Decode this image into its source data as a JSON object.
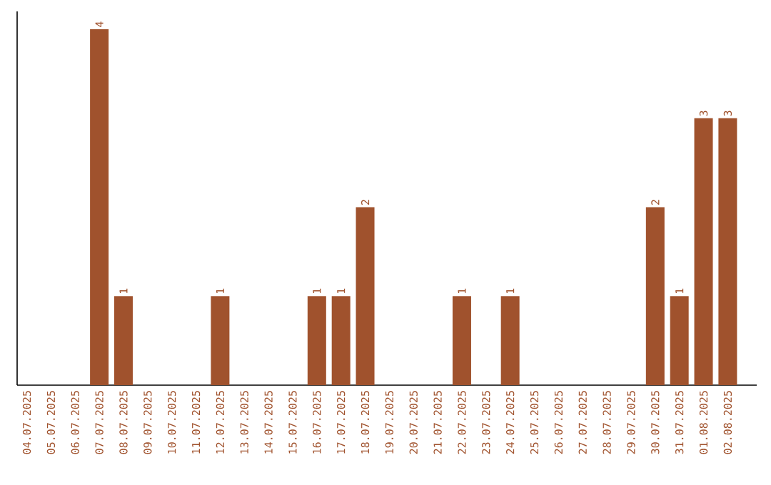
{
  "chart_data": {
    "type": "bar",
    "categories": [
      "04.07.2025",
      "05.07.2025",
      "06.07.2025",
      "07.07.2025",
      "08.07.2025",
      "09.07.2025",
      "10.07.2025",
      "11.07.2025",
      "12.07.2025",
      "13.07.2025",
      "14.07.2025",
      "15.07.2025",
      "16.07.2025",
      "17.07.2025",
      "18.07.2025",
      "19.07.2025",
      "20.07.2025",
      "21.07.2025",
      "22.07.2025",
      "23.07.2025",
      "24.07.2025",
      "25.07.2025",
      "26.07.2025",
      "27.07.2025",
      "28.07.2025",
      "29.07.2025",
      "30.07.2025",
      "31.07.2025",
      "01.08.2025",
      "02.08.2025"
    ],
    "values": [
      0,
      0,
      0,
      4,
      1,
      0,
      0,
      0,
      1,
      0,
      0,
      0,
      1,
      1,
      2,
      0,
      0,
      0,
      1,
      0,
      1,
      0,
      0,
      0,
      0,
      0,
      2,
      1,
      3,
      3
    ],
    "value_labels": [
      null,
      null,
      null,
      "4",
      "1",
      null,
      null,
      null,
      "1",
      null,
      null,
      null,
      "1",
      "1",
      "2",
      null,
      null,
      null,
      "1",
      null,
      "1",
      null,
      null,
      null,
      null,
      null,
      "2",
      "1",
      "3",
      "3"
    ],
    "color": "#a0522d",
    "tick_labels": "x"
  }
}
